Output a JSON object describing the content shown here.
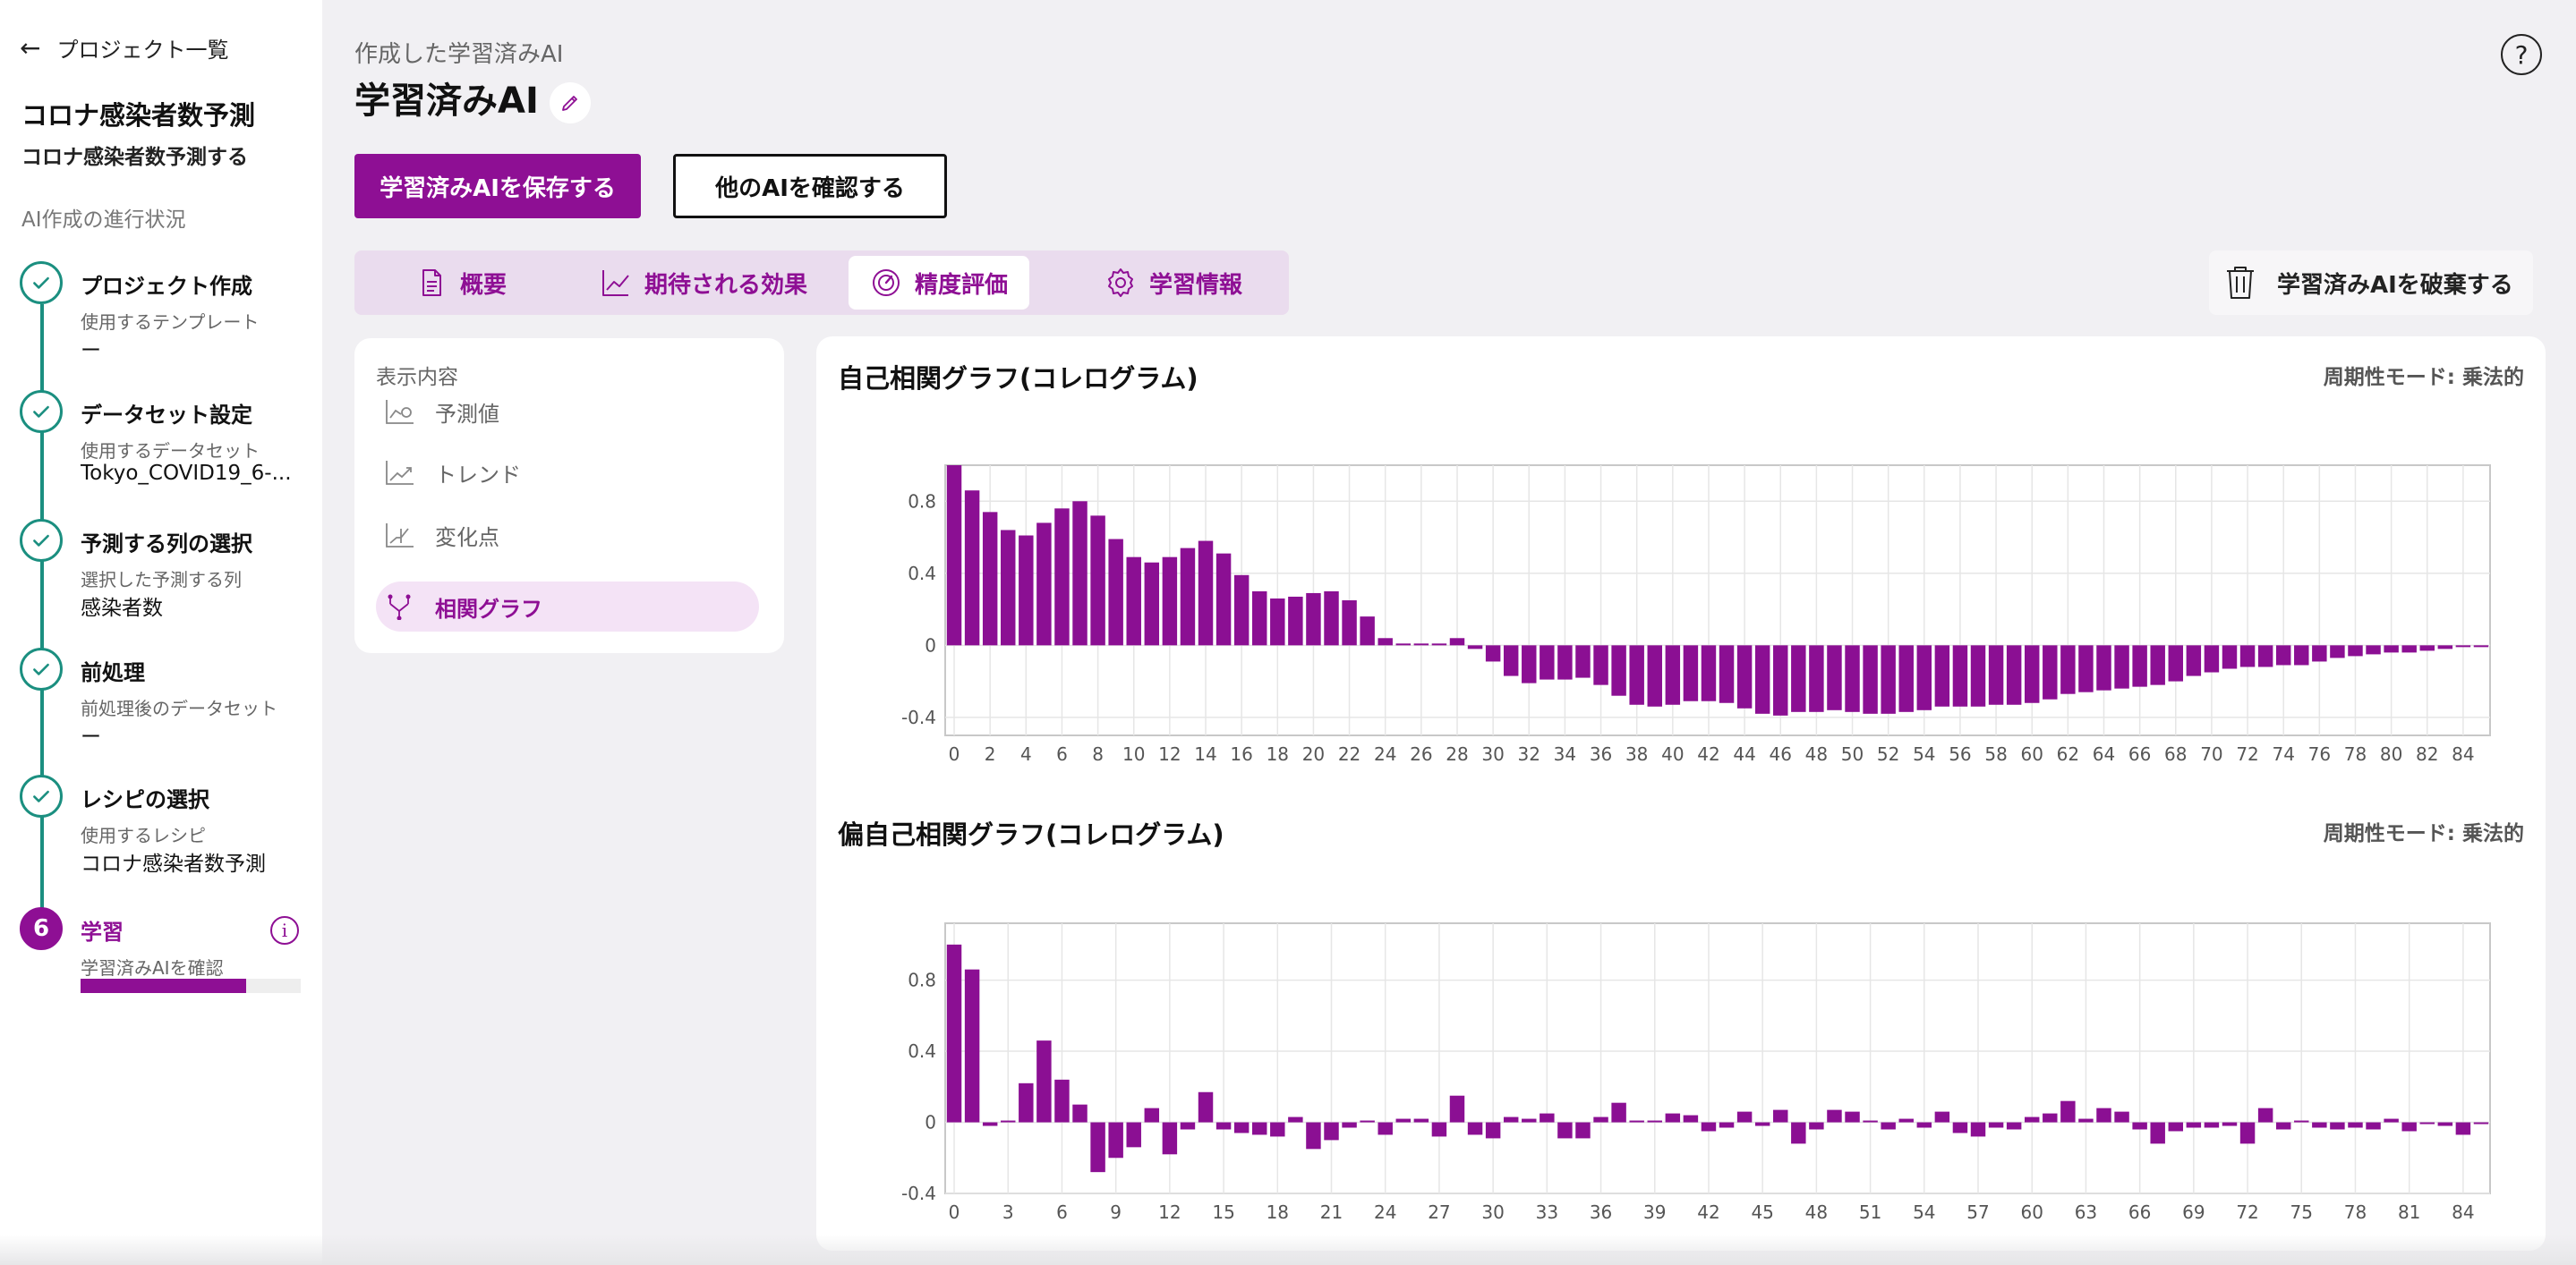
{
  "sidebar": {
    "back_label": "プロジェクト一覧",
    "project_title": "コロナ感染者数予測",
    "project_desc": "コロナ感染者数予測する",
    "progress_heading": "AI作成の進行状況",
    "steps": [
      {
        "title": "プロジェクト作成",
        "sub": "使用するテンプレート",
        "value": "ー",
        "status": "done"
      },
      {
        "title": "データセット設定",
        "sub": "使用するデータセット",
        "value": "Tokyo_COVID19_6-...",
        "status": "done"
      },
      {
        "title": "予測する列の選択",
        "sub": "選択した予測する列",
        "value": "感染者数",
        "status": "done"
      },
      {
        "title": "前処理",
        "sub": "前処理後のデータセット",
        "value": "ー",
        "status": "done"
      },
      {
        "title": "レシピの選択",
        "sub": "使用するレシピ",
        "value": "コロナ感染者数予測",
        "status": "done"
      },
      {
        "title": "学習",
        "sub": "学習済みAIを確認",
        "number": "6",
        "status": "active",
        "progress": 0.75
      }
    ]
  },
  "header": {
    "eyebrow": "作成した学習済みAI",
    "title": "学習済みAI",
    "save_button": "学習済みAIを保存する",
    "other_button": "他のAIを確認する",
    "help": "?"
  },
  "tabs": [
    {
      "label": "概要",
      "icon": "document-icon"
    },
    {
      "label": "期待される効果",
      "icon": "line-chart-icon"
    },
    {
      "label": "精度評価",
      "icon": "gauge-icon",
      "active": true
    },
    {
      "label": "学習情報",
      "icon": "gear-icon"
    }
  ],
  "discard_button": "学習済みAIを破棄する",
  "display_panel": {
    "heading": "表示内容",
    "items": [
      {
        "label": "予測値",
        "icon": "forecast-icon"
      },
      {
        "label": "トレンド",
        "icon": "trend-icon"
      },
      {
        "label": "変化点",
        "icon": "changepoint-icon"
      },
      {
        "label": "相関グラフ",
        "icon": "correlation-icon",
        "active": true
      }
    ]
  },
  "colors": {
    "accent": "#8e0f94",
    "success": "#1b8f80",
    "bar": "#8b0f93"
  },
  "chart_data": [
    {
      "type": "bar",
      "title": "自己相関グラフ(コレログラム)",
      "mode": "周期性モード: 乗法的",
      "ylim": [
        -0.5,
        1.0
      ],
      "yticks": [
        0.8,
        0.4,
        0,
        -0.4
      ],
      "ytick_labels": [
        "0.8",
        "0.4",
        "0",
        "-0.4"
      ],
      "xlim": [
        -0.5,
        85.5
      ],
      "xticks": [
        0,
        2,
        4,
        6,
        8,
        10,
        12,
        14,
        16,
        18,
        20,
        22,
        24,
        26,
        28,
        30,
        32,
        34,
        36,
        38,
        40,
        42,
        44,
        46,
        48,
        50,
        52,
        54,
        56,
        58,
        60,
        62,
        64,
        66,
        68,
        70,
        72,
        74,
        76,
        78,
        80,
        82,
        84
      ],
      "grid": true,
      "x": [
        0,
        1,
        2,
        3,
        4,
        5,
        6,
        7,
        8,
        9,
        10,
        11,
        12,
        13,
        14,
        15,
        16,
        17,
        18,
        19,
        20,
        21,
        22,
        23,
        24,
        25,
        26,
        27,
        28,
        29,
        30,
        31,
        32,
        33,
        34,
        35,
        36,
        37,
        38,
        39,
        40,
        41,
        42,
        43,
        44,
        45,
        46,
        47,
        48,
        49,
        50,
        51,
        52,
        53,
        54,
        55,
        56,
        57,
        58,
        59,
        60,
        61,
        62,
        63,
        64,
        65,
        66,
        67,
        68,
        69,
        70,
        71,
        72,
        73,
        74,
        75,
        76,
        77,
        78,
        79,
        80,
        81,
        82,
        83,
        84,
        85
      ],
      "values": [
        1.0,
        0.86,
        0.74,
        0.64,
        0.61,
        0.68,
        0.76,
        0.8,
        0.72,
        0.59,
        0.49,
        0.46,
        0.49,
        0.54,
        0.58,
        0.51,
        0.39,
        0.3,
        0.26,
        0.27,
        0.29,
        0.3,
        0.25,
        0.16,
        0.04,
        0.01,
        0.01,
        0.01,
        0.04,
        -0.02,
        -0.09,
        -0.17,
        -0.21,
        -0.19,
        -0.19,
        -0.18,
        -0.22,
        -0.28,
        -0.33,
        -0.34,
        -0.33,
        -0.31,
        -0.31,
        -0.32,
        -0.35,
        -0.38,
        -0.39,
        -0.37,
        -0.37,
        -0.36,
        -0.37,
        -0.38,
        -0.38,
        -0.37,
        -0.36,
        -0.34,
        -0.34,
        -0.34,
        -0.33,
        -0.33,
        -0.32,
        -0.3,
        -0.27,
        -0.26,
        -0.25,
        -0.24,
        -0.23,
        -0.22,
        -0.2,
        -0.17,
        -0.15,
        -0.13,
        -0.12,
        -0.12,
        -0.11,
        -0.11,
        -0.09,
        -0.07,
        -0.06,
        -0.05,
        -0.04,
        -0.04,
        -0.03,
        -0.02,
        -0.01,
        -0.01
      ]
    },
    {
      "type": "bar",
      "title": "偏自己相関グラフ(コレログラム)",
      "mode": "周期性モード: 乗法的",
      "ylim": [
        -0.4,
        1.12
      ],
      "yticks": [
        0.8,
        0.4,
        0,
        -0.4
      ],
      "ytick_labels": [
        "0.8",
        "0.4",
        "0",
        "-0.4"
      ],
      "xlim": [
        -0.5,
        85.5
      ],
      "xticks": [
        0,
        3,
        6,
        9,
        12,
        15,
        18,
        21,
        24,
        27,
        30,
        33,
        36,
        39,
        42,
        45,
        48,
        51,
        54,
        57,
        60,
        63,
        66,
        69,
        72,
        75,
        78,
        81,
        84
      ],
      "grid": true,
      "x": [
        0,
        1,
        2,
        3,
        4,
        5,
        6,
        7,
        8,
        9,
        10,
        11,
        12,
        13,
        14,
        15,
        16,
        17,
        18,
        19,
        20,
        21,
        22,
        23,
        24,
        25,
        26,
        27,
        28,
        29,
        30,
        31,
        32,
        33,
        34,
        35,
        36,
        37,
        38,
        39,
        40,
        41,
        42,
        43,
        44,
        45,
        46,
        47,
        48,
        49,
        50,
        51,
        52,
        53,
        54,
        55,
        56,
        57,
        58,
        59,
        60,
        61,
        62,
        63,
        64,
        65,
        66,
        67,
        68,
        69,
        70,
        71,
        72,
        73,
        74,
        75,
        76,
        77,
        78,
        79,
        80,
        81,
        82,
        83,
        84,
        85
      ],
      "values": [
        1.0,
        0.86,
        -0.02,
        0.01,
        0.22,
        0.46,
        0.24,
        0.1,
        -0.28,
        -0.2,
        -0.14,
        0.08,
        -0.18,
        -0.04,
        0.17,
        -0.04,
        -0.06,
        -0.07,
        -0.08,
        0.03,
        -0.15,
        -0.1,
        -0.03,
        0.01,
        -0.07,
        0.02,
        0.02,
        -0.08,
        0.15,
        -0.07,
        -0.09,
        0.03,
        0.02,
        0.05,
        -0.09,
        -0.09,
        0.03,
        0.11,
        0.01,
        0.01,
        0.05,
        0.04,
        -0.05,
        -0.03,
        0.06,
        -0.02,
        0.07,
        -0.12,
        -0.04,
        0.07,
        0.06,
        0.01,
        -0.04,
        0.02,
        -0.03,
        0.06,
        -0.06,
        -0.08,
        -0.03,
        -0.04,
        0.03,
        0.05,
        0.12,
        0.02,
        0.08,
        0.06,
        -0.04,
        -0.12,
        -0.05,
        -0.03,
        -0.03,
        -0.02,
        -0.12,
        0.08,
        -0.04,
        0.01,
        -0.03,
        -0.04,
        -0.03,
        -0.04,
        0.02,
        -0.05,
        -0.01,
        -0.02,
        -0.07,
        -0.01
      ]
    }
  ]
}
